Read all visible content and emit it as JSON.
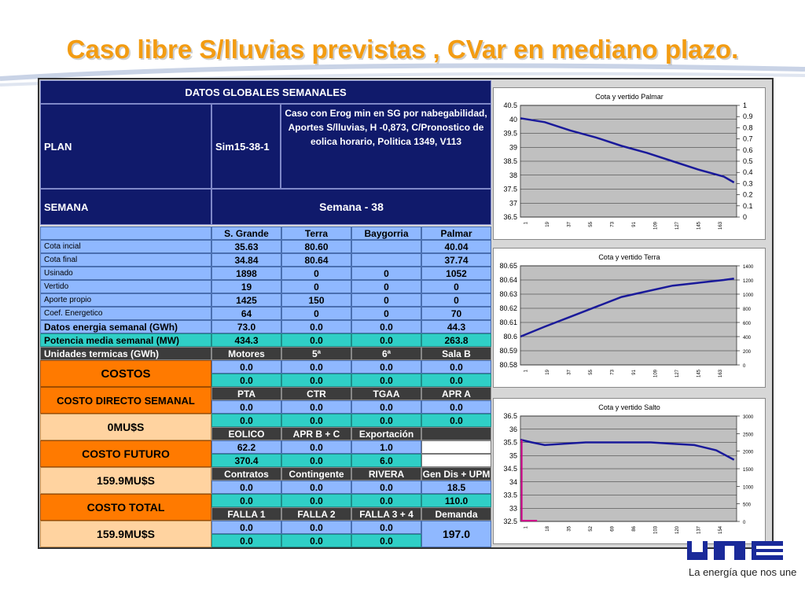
{
  "title": "Caso libre S/lluvias previstas , CVar en mediano plazo.",
  "logo_tagline": "La energía que nos une",
  "table": {
    "header": "DATOS GLOBALES SEMANALES",
    "plan_label": "PLAN",
    "plan_value": "Sim15-38-1",
    "case_description": "Caso con  Erog min en SG por nabegabilidad,  Aportes S/lluvias, H -0,873, C/Pronostico de eolica horario, Politica 1349, V113",
    "week_label": "SEMANA",
    "week_value": "Semana - 38",
    "columns": [
      "S. Grande",
      "Terra",
      "Baygorria",
      "Palmar"
    ],
    "rows": [
      {
        "label": "Cota incial",
        "values": [
          "35.63",
          "80.60",
          "",
          "40.04"
        ]
      },
      {
        "label": "Cota final",
        "values": [
          "34.84",
          "80.64",
          "",
          "37.74"
        ]
      },
      {
        "label": "Usinado",
        "values": [
          "1898",
          "0",
          "0",
          "1052"
        ]
      },
      {
        "label": "Vertido",
        "values": [
          "19",
          "0",
          "0",
          "0"
        ]
      },
      {
        "label": "Aporte propio",
        "values": [
          "1425",
          "150",
          "0",
          "0"
        ]
      },
      {
        "label": "Coef. Energetico",
        "values": [
          "64",
          "0",
          "0",
          "70"
        ]
      },
      {
        "label": "Datos energia semanal  (GWh)",
        "values": [
          "73.0",
          "0.0",
          "0.0",
          "44.3"
        ]
      },
      {
        "label": "Potencia media semanal (MW)",
        "values": [
          "434.3",
          "0.0",
          "0.0",
          "263.8"
        ]
      }
    ],
    "termicas_label": "Unidades termicas (GWh)",
    "termicas_cols": [
      "Motores",
      "5ª",
      "6ª",
      "Sala B"
    ],
    "termicas_r1": [
      "0.0",
      "0.0",
      "0.0",
      "0.0"
    ],
    "termicas_r2": [
      "0.0",
      "0.0",
      "0.0",
      "0.0"
    ],
    "g2_cols": [
      "PTA",
      "CTR",
      "TGAA",
      "APR A"
    ],
    "g2_r1": [
      "0.0",
      "0.0",
      "0.0",
      "0.0"
    ],
    "g2_r2": [
      "0.0",
      "0.0",
      "0.0",
      "0.0"
    ],
    "g3_cols": [
      "EOLICO",
      "APR B + C",
      "Exportación",
      ""
    ],
    "g3_r1": [
      "62.2",
      "0.0",
      "1.0",
      ""
    ],
    "g3_r2": [
      "370.4",
      "0.0",
      "6.0",
      ""
    ],
    "g4_cols": [
      "Contratos",
      "Contingente",
      "RIVERA",
      "Gen Dis + UPM"
    ],
    "g4_r1": [
      "0.0",
      "0.0",
      "0.0",
      "18.5"
    ],
    "g4_r2": [
      "0.0",
      "0.0",
      "0.0",
      "110.0"
    ],
    "g5_cols": [
      "FALLA 1",
      "FALLA 2",
      "FALLA 3 + 4",
      "Demanda"
    ],
    "g5_r1": [
      "0.0",
      "0.0",
      "0.0"
    ],
    "g5_r2": [
      "0.0",
      "0.0",
      "0.0"
    ],
    "demanda_value": "197.0",
    "costos_label": "COSTOS",
    "costo_directo_label": "COSTO DIRECTO SEMANAL",
    "costo_directo_value": "0MU$S",
    "costo_futuro_label": "COSTO FUTURO",
    "costo_futuro_value": "159.9MU$S",
    "costo_total_label": "COSTO TOTAL",
    "costo_total_value": "159.9MU$S"
  },
  "colors": {
    "accent": "#f39c12",
    "navy": "#101a6b",
    "series": "#1a1a9a",
    "spike": "#d0008a"
  },
  "chart_data": [
    {
      "type": "line",
      "title": "Cota y vertido  Palmar",
      "ylim": [
        36.5,
        40.5
      ],
      "y_ticks": [
        "40.5",
        "40",
        "39.5",
        "39",
        "38.5",
        "38",
        "37.5",
        "37",
        "36.5"
      ],
      "y2_ticks": [
        "1",
        "0.9",
        "0.8",
        "0.7",
        "0.6",
        "0.5",
        "0.4",
        "0.3",
        "0.2",
        "0.1",
        "0"
      ],
      "x_ticks": [
        "1",
        "19",
        "37",
        "55",
        "73",
        "91",
        "109",
        "127",
        "145",
        "163"
      ],
      "x": [
        1,
        20,
        40,
        60,
        80,
        100,
        120,
        140,
        160,
        168
      ],
      "y": [
        40.04,
        39.9,
        39.6,
        39.35,
        39.05,
        38.8,
        38.5,
        38.2,
        37.95,
        37.74
      ],
      "grid": true
    },
    {
      "type": "line",
      "title": "Cota y vertido Terra",
      "ylim": [
        80.58,
        80.65
      ],
      "y_ticks": [
        "80.65",
        "80.64",
        "80.63",
        "80.62",
        "80.61",
        "80.6",
        "80.59",
        "80.58"
      ],
      "y2_ticks": [
        "1400",
        "1200",
        "1000",
        "800",
        "600",
        "400",
        "200",
        "0"
      ],
      "x_ticks": [
        "1",
        "19",
        "37",
        "55",
        "73",
        "91",
        "109",
        "127",
        "145",
        "163"
      ],
      "x": [
        1,
        20,
        40,
        60,
        80,
        100,
        120,
        140,
        160,
        168
      ],
      "y": [
        80.6,
        80.607,
        80.614,
        80.621,
        80.628,
        80.632,
        80.636,
        80.638,
        80.64,
        80.641
      ],
      "grid": true
    },
    {
      "type": "line",
      "title": "Cota y vertido Salto",
      "ylim": [
        32.5,
        36.5
      ],
      "y_ticks": [
        "36.5",
        "36",
        "35.5",
        "35",
        "34.5",
        "34",
        "33.5",
        "33",
        "32.5"
      ],
      "y2_ticks": [
        "3000",
        "2500",
        "2000",
        "1500",
        "1000",
        "500",
        "0"
      ],
      "x_ticks": [
        "1",
        "18",
        "35",
        "52",
        "69",
        "86",
        "103",
        "120",
        "137",
        "154"
      ],
      "x": [
        1,
        10,
        20,
        35,
        52,
        69,
        86,
        103,
        120,
        137,
        154,
        168
      ],
      "y": [
        35.6,
        35.5,
        35.4,
        35.45,
        35.5,
        35.5,
        35.5,
        35.5,
        35.45,
        35.4,
        35.2,
        34.84
      ],
      "grid": true
    }
  ]
}
